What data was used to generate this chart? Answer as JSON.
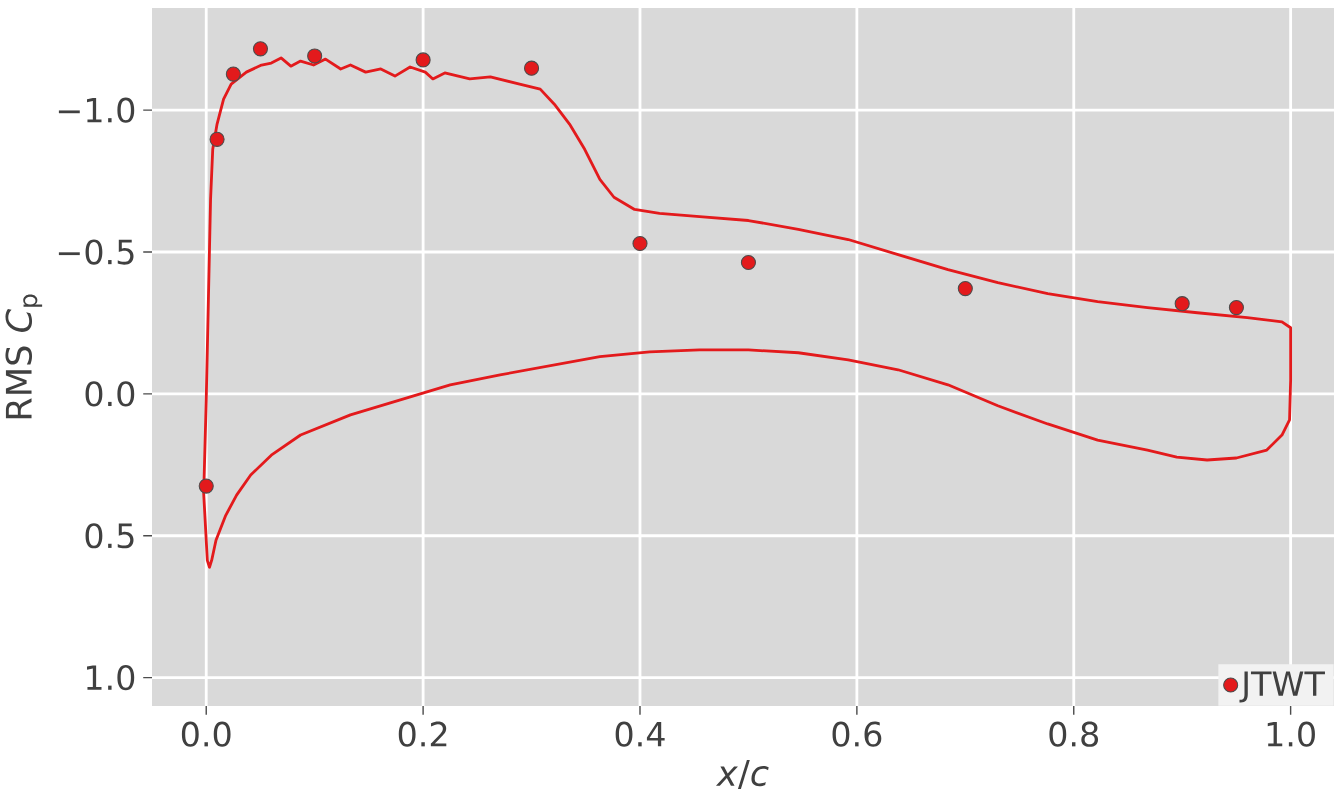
{
  "chart_data": {
    "type": "scatter",
    "xlabel": "*x*/*c*",
    "ylabel": "RMS *C*$_{p}$",
    "xlim": [
      -0.05,
      1.04
    ],
    "ylim": [
      1.1,
      -1.36
    ],
    "xticks": [
      {
        "value": 0,
        "label": "0.0"
      },
      {
        "value": 0.2,
        "label": "0.2"
      },
      {
        "value": 0.4,
        "label": "0.4"
      },
      {
        "value": 0.6,
        "label": "0.6"
      },
      {
        "value": 0.8,
        "label": "0.8"
      },
      {
        "value": 1,
        "label": "1.0"
      }
    ],
    "yticks": [
      {
        "value": -1,
        "label": "−1.0"
      },
      {
        "value": -0.5,
        "label": "−0.5"
      },
      {
        "value": 0,
        "label": "0.0"
      },
      {
        "value": 0.5,
        "label": "0.5"
      },
      {
        "value": 1,
        "label": "1.0"
      }
    ],
    "grid": true,
    "legend": "bottom right",
    "x": [
      0,
      0.01,
      0.025,
      0.05,
      0.1,
      0.2,
      0.3,
      0.4,
      0.5,
      0.7,
      0.9,
      0.95
    ],
    "series": [
      {
        "name": "JTWT",
        "color": "#e31a1c",
        "marker": "circle",
        "values": [
          0.325,
          -0.897,
          -1.127,
          -1.216,
          -1.191,
          -1.177,
          -1.148,
          -0.53,
          -0.463,
          -0.371,
          -0.318,
          -0.304
        ]
      },
      {
        "type": "line",
        "color": "#e31a1c",
        "marker": "none",
        "x": [
          -0.002,
          0,
          0.002,
          0.004,
          0.006,
          0.01,
          0.016,
          0.023,
          0.037,
          0.051,
          0.06,
          0.069,
          0.078,
          0.087,
          0.099,
          0.11,
          0.124,
          0.133,
          0.147,
          0.161,
          0.174,
          0.188,
          0.202,
          0.209,
          0.22,
          0.243,
          0.262,
          0.289,
          0.308,
          0.321,
          0.335,
          0.349,
          0.363,
          0.376,
          0.395,
          0.418,
          0.455,
          0.5,
          0.546,
          0.592,
          0.638,
          0.684,
          0.73,
          0.776,
          0.822,
          0.868,
          0.914,
          0.96,
          0.992,
          1.0,
          1.0,
          0.999,
          0.992,
          0.978,
          0.95,
          0.923,
          0.895,
          0.868,
          0.822,
          0.776,
          0.73,
          0.684,
          0.638,
          0.592,
          0.546,
          0.5,
          0.455,
          0.409,
          0.363,
          0.317,
          0.271,
          0.225,
          0.179,
          0.133,
          0.087,
          0.06,
          0.041,
          0.028,
          0.018,
          0.009,
          0.005,
          0.003,
          0.001,
          -0.001,
          -0.003
        ],
        "values": [
          0.304,
          0.021,
          -0.332,
          -0.686,
          -0.862,
          -0.951,
          -1.039,
          -1.092,
          -1.134,
          -1.159,
          -1.166,
          -1.184,
          -1.155,
          -1.173,
          -1.159,
          -1.18,
          -1.145,
          -1.159,
          -1.134,
          -1.145,
          -1.12,
          -1.152,
          -1.134,
          -1.11,
          -1.131,
          -1.11,
          -1.117,
          -1.092,
          -1.074,
          -1.021,
          -0.951,
          -0.862,
          -0.756,
          -0.693,
          -0.65,
          -0.636,
          -0.625,
          -0.611,
          -0.58,
          -0.544,
          -0.491,
          -0.438,
          -0.392,
          -0.353,
          -0.325,
          -0.304,
          -0.286,
          -0.269,
          -0.254,
          -0.233,
          -0.049,
          0.092,
          0.145,
          0.198,
          0.226,
          0.233,
          0.223,
          0.198,
          0.163,
          0.106,
          0.042,
          -0.032,
          -0.085,
          -0.12,
          -0.145,
          -0.155,
          -0.155,
          -0.148,
          -0.131,
          -0.099,
          -0.067,
          -0.032,
          0.021,
          0.074,
          0.145,
          0.216,
          0.286,
          0.357,
          0.428,
          0.516,
          0.587,
          0.611,
          0.587,
          0.445,
          0.304
        ]
      }
    ]
  }
}
